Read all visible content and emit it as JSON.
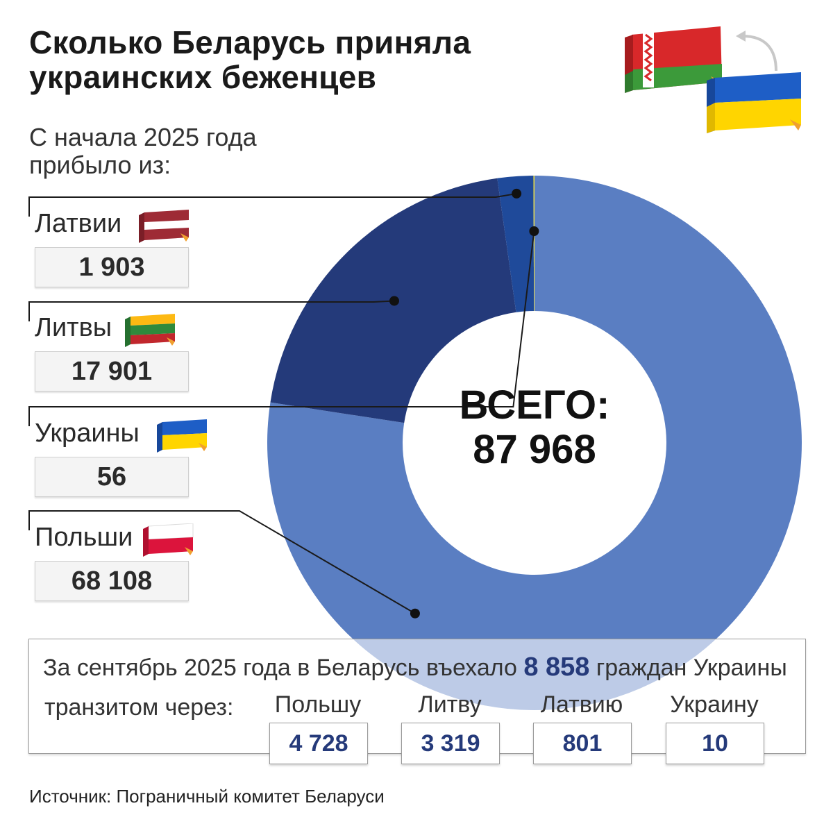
{
  "header": {
    "title_line1": "Сколько Беларусь приняла",
    "title_line2": "украинских беженцев",
    "subtitle_line1": "С начала 2025 года",
    "subtitle_line2": "прибыло из:"
  },
  "center": {
    "label_line1": "ВСЕГО:",
    "label_line2": "87 968"
  },
  "countries": [
    {
      "name": "Латвии",
      "value_text": "1 903",
      "flag": "latvia-flag"
    },
    {
      "name": "Литвы",
      "value_text": "17 901",
      "flag": "lithuania-flag"
    },
    {
      "name": "Украины",
      "value_text": "56",
      "flag": "ukraine-flag"
    },
    {
      "name": "Польши",
      "value_text": "68 108",
      "flag": "poland-flag"
    }
  ],
  "september": {
    "text_before": "За сентябрь 2025 года в Беларусь въехало",
    "number": "8 858",
    "text_after": "граждан Украины",
    "transit_label": "транзитом через:",
    "items": [
      {
        "label": "Польшу",
        "value": "4 728"
      },
      {
        "label": "Литву",
        "value": "3 319"
      },
      {
        "label": "Латвию",
        "value": "801"
      },
      {
        "label": "Украину",
        "value": "10"
      }
    ]
  },
  "source": "Источник: Пограничный комитет Беларуси",
  "colors": {
    "poland": "#5a7ec2",
    "lithuania": "#243a7a",
    "latvia": "#1f4a9a",
    "ukraine": "#f3e23a",
    "text_dark": "#1a1a1a",
    "accent_number": "#253a7a"
  },
  "chart_data": {
    "type": "pie",
    "variant": "donut",
    "categories": [
      "Польши",
      "Литвы",
      "Латвии",
      "Украины"
    ],
    "values": [
      68108,
      17901,
      1903,
      56
    ],
    "series_colors": [
      "#5a7ec2",
      "#243a7a",
      "#1f4a9a",
      "#f3e23a"
    ],
    "total": 87968,
    "start_angle_deg": 0,
    "direction": "clockwise"
  }
}
